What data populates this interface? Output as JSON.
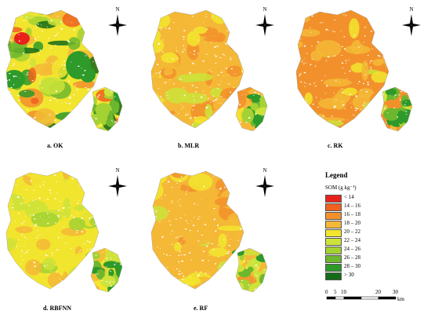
{
  "panels": [
    {
      "id": "a",
      "caption": "a. OK"
    },
    {
      "id": "b",
      "caption": "b. MLR"
    },
    {
      "id": "c",
      "caption": "c. RK"
    },
    {
      "id": "d",
      "caption": "d. RBFNN"
    },
    {
      "id": "e",
      "caption": "e. RF"
    }
  ],
  "north_label": "N",
  "legend": {
    "title": "Legend",
    "subtitle": "SOM (g  kg⁻¹)",
    "classes": [
      {
        "label": "< 14",
        "color": "#e8221b"
      },
      {
        "label": "14 – 16",
        "color": "#f0601f"
      },
      {
        "label": "16 – 18",
        "color": "#f2912b"
      },
      {
        "label": "18 – 20",
        "color": "#f5b836"
      },
      {
        "label": "20 – 22",
        "color": "#f2e52e"
      },
      {
        "label": "22 – 24",
        "color": "#cde33a"
      },
      {
        "label": "24 – 26",
        "color": "#a5d233"
      },
      {
        "label": "26 – 28",
        "color": "#6db72e"
      },
      {
        "label": "28 – 30",
        "color": "#2e9a2a"
      },
      {
        "label": "> 30",
        "color": "#156b18"
      }
    ]
  },
  "scale": {
    "ticks": [
      "0",
      "5",
      "10",
      "20",
      "30"
    ],
    "unit": "km"
  }
}
